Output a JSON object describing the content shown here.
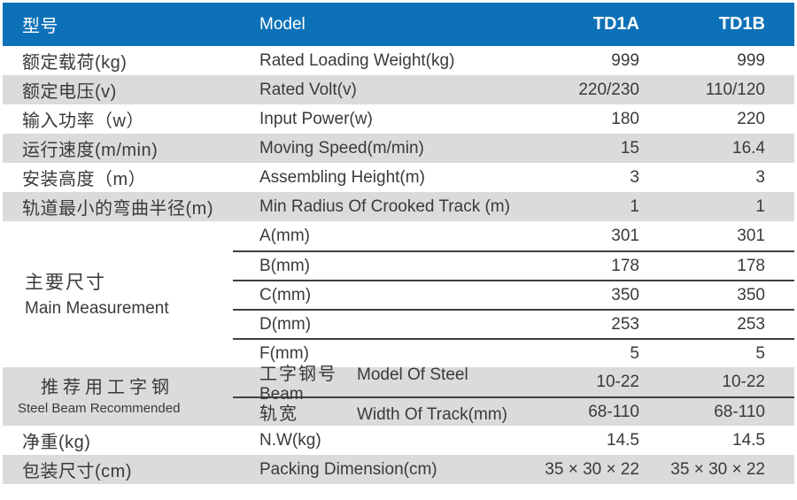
{
  "table": {
    "header": {
      "cn": "型号",
      "en": "Model",
      "col_a": "TD1A",
      "col_b": "TD1B"
    },
    "rows": [
      {
        "cn": "额定载荷(kg)",
        "en": "Rated Loading Weight(kg)",
        "a": "999",
        "b": "999"
      },
      {
        "cn": "额定电压(v)",
        "en": "Rated Volt(v)",
        "a": "220/230",
        "b": "110/120"
      },
      {
        "cn": "输入功率（w）",
        "en": "Input Power(w)",
        "a": "180",
        "b": "220"
      },
      {
        "cn": "运行速度(m/min)",
        "en": "Moving Speed(m/min)",
        "a": "15",
        "b": "16.4"
      },
      {
        "cn": "安装高度（m）",
        "en": "Assembling Height(m)",
        "a": "3",
        "b": "3"
      },
      {
        "cn": "轨道最小的弯曲半径(m)",
        "en": "Min Radius Of Crooked Track (m)",
        "a": "1",
        "b": "1"
      }
    ],
    "measurement": {
      "cn": "主要尺寸",
      "en": "Main Measurement",
      "rows": [
        {
          "label": "A(mm)",
          "a": "301",
          "b": "301"
        },
        {
          "label": "B(mm)",
          "a": "178",
          "b": "178"
        },
        {
          "label": "C(mm)",
          "a": "350",
          "b": "350"
        },
        {
          "label": "D(mm)",
          "a": "253",
          "b": "253"
        },
        {
          "label": "F(mm)",
          "a": "5",
          "b": "5"
        }
      ]
    },
    "steel": {
      "cn": "推荐用工字钢",
      "en": "Steel Beam Recommended",
      "rows": [
        {
          "cn": "工字钢号",
          "en": "Model Of Steel Beam",
          "a": "10-22",
          "b": "10-22"
        },
        {
          "cn": "轨宽",
          "en": "Width Of Track(mm)",
          "a": "68-110",
          "b": "68-110"
        }
      ]
    },
    "footer": [
      {
        "cn": "净重(kg)",
        "en": "N.W(kg)",
        "a": "14.5",
        "b": "14.5"
      },
      {
        "cn": "包装尺寸(cm)",
        "en": "Packing Dimension(cm)",
        "a": "35 × 30 × 22",
        "b": "35 × 30 × 22"
      }
    ],
    "colors": {
      "header_bg": "#0d71b8",
      "header_text": "#ffffff",
      "alt_row_bg": "#dbdbdb",
      "text": "#3a3a3a",
      "divider_line": "#3f3f3f"
    }
  }
}
